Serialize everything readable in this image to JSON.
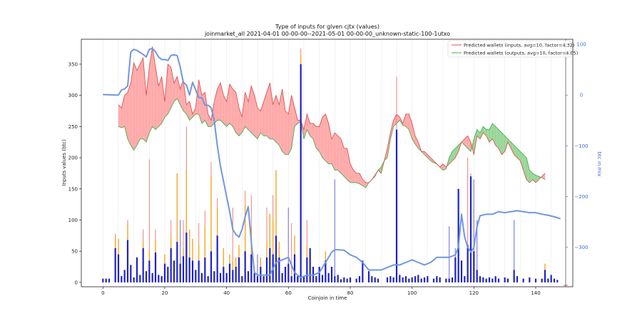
{
  "chart_data": {
    "type": "bar",
    "title_line1": "Type of inputs for given cjtx (values)",
    "title_line2": "joinmarket_all 2021-04-01 00-00-00--2021-05-01 00-00-00_unknown-static-100-1utxo",
    "xlabel": "Coinjoin in time",
    "ylabel": "Inputs values (btc)",
    "ylabel_right": "btc in mix",
    "xlim": [
      -7,
      152
    ],
    "ylim": [
      -7,
      390
    ],
    "ylim_right": [
      -378,
      110
    ],
    "x_ticks": [
      0,
      20,
      40,
      60,
      80,
      100,
      120,
      140
    ],
    "y_ticks": [
      0,
      50,
      100,
      150,
      200,
      250,
      300,
      350
    ],
    "y_ticks_right": [
      100,
      0,
      -100,
      -200,
      -300
    ],
    "y_tick_labels_right": [
      "100",
      "0",
      "−100",
      "−200",
      "−300"
    ],
    "legend": {
      "position": "top-right",
      "entries": [
        {
          "label": "Predicted wallets (inputs, avg=10, factor=4.32)",
          "color": "#e05252"
        },
        {
          "label": "Predicted wallets (outputs, avg=10, factor=4.05)",
          "color": "#4caf50"
        }
      ]
    },
    "colors": {
      "bars_main": "#1f22c8",
      "bars_light": "#8f90e8",
      "bars_orange": "#f5a623",
      "bars_red": "#e98080",
      "btc_line": "#6f97e0",
      "fill_red": "#ff9a9a",
      "fill_green": "#86cf86",
      "line_red": "#e05252",
      "line_green": "#4caf50",
      "grid": "#e6e6e6"
    },
    "bars": [
      {
        "x": 0,
        "v": 6
      },
      {
        "x": 1,
        "v": 6
      },
      {
        "x": 2,
        "v": 6
      },
      {
        "x": 4,
        "v": 55,
        "o": 75,
        "r": 78
      },
      {
        "x": 5,
        "v": 45,
        "o": 70
      },
      {
        "x": 6,
        "v": 10
      },
      {
        "x": 7,
        "v": 20
      },
      {
        "x": 8,
        "v": 68,
        "o": 95,
        "r": 100
      },
      {
        "x": 9,
        "v": 28
      },
      {
        "x": 10,
        "v": 8
      },
      {
        "x": 11,
        "v": 40
      },
      {
        "x": 12,
        "v": 12
      },
      {
        "x": 13,
        "v": 55,
        "o": 65,
        "r": 85
      },
      {
        "x": 14,
        "v": 18
      },
      {
        "x": 15,
        "v": 35,
        "o": 50,
        "r": 197
      },
      {
        "x": 16,
        "v": 15
      },
      {
        "x": 17,
        "v": 48,
        "o": 68,
        "r": 85
      },
      {
        "x": 18,
        "v": 12
      },
      {
        "x": 19,
        "v": 10
      },
      {
        "x": 20,
        "v": 30,
        "o": 45
      },
      {
        "x": 21,
        "v": 25
      },
      {
        "x": 22,
        "v": 55,
        "o": 75,
        "r": 100
      },
      {
        "x": 23,
        "v": 35
      },
      {
        "x": 24,
        "v": 65,
        "o": 175
      },
      {
        "x": 25,
        "v": 30,
        "o": 40,
        "l": 100
      },
      {
        "x": 26,
        "v": 42,
        "o": 55,
        "r": 100
      },
      {
        "x": 27,
        "v": 80,
        "o": 180,
        "r": 250
      },
      {
        "x": 28,
        "v": 40,
        "o": 85
      },
      {
        "x": 29,
        "v": 35,
        "o": 70
      },
      {
        "x": 30,
        "v": 20
      },
      {
        "x": 31,
        "v": 35,
        "o": 60,
        "r": 95
      },
      {
        "x": 32,
        "v": 15
      },
      {
        "x": 33,
        "v": 40,
        "o": 90,
        "r": 115
      },
      {
        "x": 34,
        "v": 10
      },
      {
        "x": 35,
        "v": 50,
        "o": 170,
        "r": 193
      },
      {
        "x": 36,
        "v": 18
      },
      {
        "x": 37,
        "v": 75,
        "o": 120,
        "r": 135
      },
      {
        "x": 38,
        "v": 15
      },
      {
        "x": 39,
        "v": 25,
        "o": 55
      },
      {
        "x": 40,
        "v": 15
      },
      {
        "x": 41,
        "v": 30,
        "o": 45
      },
      {
        "x": 42,
        "v": 20,
        "o": 35,
        "r": 120
      },
      {
        "x": 43,
        "v": 25,
        "o": 40
      },
      {
        "x": 44,
        "v": 40,
        "o": 60
      },
      {
        "x": 45,
        "v": 10
      },
      {
        "x": 46,
        "v": 50,
        "o": 125,
        "r": 147
      },
      {
        "x": 47,
        "v": 18
      },
      {
        "x": 48,
        "v": 45,
        "o": 90,
        "r": 140
      },
      {
        "x": 49,
        "v": 15
      },
      {
        "x": 50,
        "v": 10,
        "l": 45
      },
      {
        "x": 51,
        "v": 25,
        "o": 40
      },
      {
        "x": 52,
        "v": 10
      },
      {
        "x": 53,
        "v": 40,
        "o": 65,
        "r": 120
      },
      {
        "x": 54,
        "v": 55,
        "o": 110
      },
      {
        "x": 55,
        "v": 45,
        "o": 100,
        "r": 140
      },
      {
        "x": 56,
        "v": 75,
        "o": 180
      },
      {
        "x": 57,
        "v": 40,
        "o": 65
      },
      {
        "x": 58,
        "v": 15
      },
      {
        "x": 59,
        "v": 25
      },
      {
        "x": 60,
        "v": 30,
        "l": 120
      },
      {
        "x": 61,
        "v": 10,
        "o": 25,
        "r": 95
      },
      {
        "x": 62,
        "v": 45,
        "o": 75
      },
      {
        "x": 63,
        "v": 10
      },
      {
        "x": 64,
        "v": 350,
        "o": 365,
        "r": 375
      },
      {
        "x": 65,
        "v": 10
      },
      {
        "x": 66,
        "v": 40,
        "o": 60,
        "r": 100
      },
      {
        "x": 67,
        "v": 55
      },
      {
        "x": 68,
        "v": 25
      },
      {
        "x": 69,
        "v": 10
      },
      {
        "x": 70,
        "v": 25
      },
      {
        "x": 71,
        "v": 12
      },
      {
        "x": 72,
        "v": 35,
        "o": 50
      },
      {
        "x": 73,
        "v": 15
      },
      {
        "x": 74,
        "v": 25
      },
      {
        "x": 75,
        "v": 10,
        "l": 165
      },
      {
        "x": 76,
        "v": 12
      },
      {
        "x": 77,
        "v": 5
      },
      {
        "x": 78,
        "v": 8
      },
      {
        "x": 79,
        "v": 6
      },
      {
        "x": 80,
        "v": 8
      },
      {
        "x": 82,
        "v": 6
      },
      {
        "x": 83,
        "v": 10
      },
      {
        "x": 84,
        "v": 35
      },
      {
        "x": 86,
        "v": 18
      },
      {
        "x": 87,
        "v": 10
      },
      {
        "x": 88,
        "v": 8
      },
      {
        "x": 89,
        "v": 6
      },
      {
        "x": 92,
        "v": 8
      },
      {
        "x": 93,
        "v": 10
      },
      {
        "x": 94,
        "v": 8
      },
      {
        "x": 95,
        "v": 245,
        "r": 330
      },
      {
        "x": 96,
        "v": 12
      },
      {
        "x": 97,
        "v": 8
      },
      {
        "x": 98,
        "v": 10
      },
      {
        "x": 99,
        "v": 6
      },
      {
        "x": 100,
        "v": 8
      },
      {
        "x": 101,
        "v": 10
      },
      {
        "x": 102,
        "v": 12
      },
      {
        "x": 103,
        "v": 6
      },
      {
        "x": 104,
        "v": 8
      },
      {
        "x": 105,
        "v": 10
      },
      {
        "x": 107,
        "v": 6
      },
      {
        "x": 108,
        "v": 10
      },
      {
        "x": 109,
        "v": 8
      },
      {
        "x": 111,
        "v": 6
      },
      {
        "x": 112,
        "v": 6,
        "l": 90
      },
      {
        "x": 113,
        "v": 8
      },
      {
        "x": 114,
        "v": 40,
        "l": 55
      },
      {
        "x": 115,
        "v": 150
      },
      {
        "x": 116,
        "v": 35
      },
      {
        "x": 117,
        "v": 10
      },
      {
        "x": 118,
        "v": 60,
        "r": 200
      },
      {
        "x": 119,
        "v": 170,
        "r": 175
      },
      {
        "x": 120,
        "v": 50,
        "l": 165
      },
      {
        "x": 121,
        "v": 20,
        "l": 100
      },
      {
        "x": 122,
        "v": 10
      },
      {
        "x": 123,
        "v": 8
      },
      {
        "x": 124,
        "v": 6
      },
      {
        "x": 125,
        "v": 8
      },
      {
        "x": 126,
        "v": 6
      },
      {
        "x": 127,
        "v": 10
      },
      {
        "x": 128,
        "v": 6
      },
      {
        "x": 130,
        "v": 8
      },
      {
        "x": 131,
        "v": 6
      },
      {
        "x": 133,
        "v": 20,
        "l": 100
      },
      {
        "x": 134,
        "v": 10
      },
      {
        "x": 136,
        "v": 6
      },
      {
        "x": 138,
        "v": 8
      },
      {
        "x": 140,
        "v": 6
      },
      {
        "x": 142,
        "v": 6
      },
      {
        "x": 143,
        "v": 20,
        "o": 30
      },
      {
        "x": 144,
        "v": 6
      },
      {
        "x": 145,
        "v": 12
      },
      {
        "x": 146,
        "v": 6
      },
      {
        "x": 147,
        "v": 4
      }
    ],
    "btc_in_mix": {
      "x": [
        0,
        4,
        5,
        6,
        7,
        8,
        9,
        10,
        11,
        12,
        13,
        14,
        15,
        16,
        17,
        18,
        19,
        20,
        21,
        22,
        23,
        24,
        25,
        26,
        27,
        28,
        29,
        30,
        31,
        32,
        33,
        34,
        35,
        36,
        37,
        38,
        39,
        40,
        41,
        42,
        43,
        44,
        45,
        46,
        47,
        48,
        49,
        50,
        52,
        54,
        56,
        58,
        60,
        62,
        64,
        66,
        68,
        70,
        72,
        74,
        75,
        76,
        78,
        80,
        82,
        84,
        86,
        88,
        90,
        92,
        94,
        96,
        98,
        100,
        102,
        104,
        106,
        108,
        110,
        112,
        114,
        115,
        116,
        117,
        118,
        119,
        120,
        121,
        122,
        124,
        126,
        128,
        130,
        132,
        134,
        136,
        138,
        140,
        142,
        144,
        146,
        148
      ],
      "y": [
        1,
        0,
        0,
        10,
        12,
        18,
        85,
        90,
        88,
        84,
        80,
        75,
        90,
        92,
        85,
        75,
        70,
        70,
        68,
        78,
        79,
        78,
        55,
        25,
        20,
        0,
        25,
        10,
        -5,
        -5,
        -20,
        -20,
        -25,
        -50,
        -100,
        -140,
        -170,
        -200,
        -230,
        -265,
        -275,
        -280,
        -265,
        -240,
        -220,
        -290,
        -350,
        -355,
        -355,
        -355,
        -330,
        -325,
        -320,
        -350,
        -360,
        -355,
        -355,
        -350,
        -330,
        -310,
        -305,
        -305,
        -306,
        -315,
        -320,
        -330,
        -345,
        -345,
        -345,
        -340,
        -335,
        -335,
        -330,
        -325,
        -330,
        -335,
        -330,
        -320,
        -320,
        -320,
        -315,
        -300,
        -235,
        -280,
        -300,
        -310,
        -300,
        -260,
        -238,
        -235,
        -235,
        -230,
        -232,
        -230,
        -228,
        -230,
        -232,
        -232,
        -235,
        -237,
        -240,
        -244
      ],
      "max_annotation_y": 83
    },
    "wallets_inputs": {
      "x": [
        5,
        6,
        7,
        8,
        9,
        10,
        11,
        12,
        13,
        14,
        15,
        16,
        17,
        18,
        19,
        20,
        21,
        22,
        23,
        24,
        25,
        26,
        27,
        28,
        29,
        30,
        31,
        32,
        33,
        34,
        35,
        36,
        37,
        38,
        39,
        40,
        41,
        42,
        43,
        44,
        45,
        46,
        47,
        48,
        49,
        50,
        51,
        52,
        53,
        54,
        55,
        56,
        57,
        58,
        59,
        60,
        61,
        62,
        63,
        64,
        65,
        66,
        67,
        68,
        69,
        70,
        71,
        72,
        73,
        74,
        75,
        76,
        77,
        78,
        79,
        80,
        81,
        82,
        83,
        84,
        85,
        86,
        87,
        88,
        89,
        90,
        91,
        92,
        93,
        94,
        95,
        96,
        97,
        98,
        99,
        100,
        101,
        102,
        103,
        104,
        105,
        106,
        107,
        108,
        109,
        110,
        111,
        112,
        113,
        114,
        115,
        116,
        117,
        118,
        119,
        120,
        121,
        122,
        123,
        124,
        125,
        126,
        127,
        128,
        129,
        130,
        131,
        132,
        133,
        134,
        135,
        136,
        137,
        138,
        139,
        140,
        141,
        142,
        143
      ],
      "y": [
        285,
        280,
        300,
        305,
        320,
        352,
        340,
        350,
        360,
        300,
        345,
        378,
        345,
        315,
        330,
        290,
        350,
        345,
        320,
        330,
        310,
        325,
        285,
        290,
        270,
        280,
        325,
        300,
        305,
        270,
        260,
        290,
        310,
        320,
        300,
        290,
        318,
        310,
        305,
        280,
        265,
        305,
        290,
        315,
        300,
        280,
        275,
        290,
        305,
        320,
        285,
        300,
        285,
        310,
        275,
        270,
        300,
        280,
        260,
        260,
        245,
        270,
        255,
        255,
        250,
        250,
        265,
        270,
        255,
        230,
        240,
        235,
        230,
        215,
        215,
        190,
        180,
        175,
        175,
        165,
        160,
        160,
        165,
        172,
        180,
        175,
        195,
        215,
        240,
        260,
        270,
        265,
        255,
        270,
        270,
        255,
        235,
        225,
        210,
        210,
        205,
        200,
        195,
        190,
        185,
        190,
        185,
        190,
        195,
        200,
        210,
        225,
        230,
        235,
        225,
        205,
        235,
        230,
        240,
        235,
        225,
        230,
        220,
        215,
        205,
        210,
        225,
        215,
        205,
        200,
        195,
        180,
        165,
        160,
        165,
        160,
        165,
        170,
        175
      ]
    },
    "wallets_outputs": {
      "x": [
        5,
        6,
        7,
        8,
        9,
        10,
        11,
        12,
        13,
        14,
        15,
        16,
        17,
        18,
        19,
        20,
        21,
        22,
        23,
        24,
        25,
        26,
        27,
        28,
        29,
        30,
        31,
        32,
        33,
        34,
        35,
        36,
        37,
        38,
        39,
        40,
        41,
        42,
        43,
        44,
        45,
        46,
        47,
        48,
        49,
        50,
        51,
        52,
        53,
        54,
        55,
        56,
        57,
        58,
        59,
        60,
        61,
        62,
        63,
        64,
        65,
        66,
        67,
        68,
        69,
        70,
        71,
        72,
        73,
        74,
        75,
        76,
        77,
        78,
        79,
        80,
        81,
        82,
        83,
        84,
        85,
        86,
        87,
        88,
        89,
        90,
        91,
        92,
        93,
        94,
        95,
        96,
        97,
        98,
        99,
        100,
        101,
        102,
        103,
        104,
        105,
        106,
        107,
        108,
        109,
        110,
        111,
        112,
        113,
        114,
        115,
        116,
        117,
        118,
        119,
        120,
        121,
        122,
        123,
        124,
        125,
        126,
        127,
        128,
        129,
        130,
        131,
        132,
        133,
        134,
        135,
        136,
        137,
        138,
        139,
        140,
        141,
        142,
        143
      ],
      "y": [
        250,
        248,
        250,
        230,
        220,
        212,
        220,
        230,
        230,
        225,
        240,
        250,
        245,
        250,
        255,
        265,
        270,
        280,
        290,
        295,
        285,
        275,
        270,
        260,
        265,
        270,
        270,
        255,
        260,
        250,
        250,
        255,
        260,
        260,
        255,
        250,
        255,
        250,
        240,
        235,
        240,
        250,
        245,
        240,
        235,
        230,
        240,
        235,
        235,
        230,
        230,
        225,
        220,
        210,
        205,
        205,
        215,
        250,
        255,
        258,
        230,
        245,
        235,
        230,
        215,
        210,
        200,
        195,
        190,
        190,
        180,
        180,
        175,
        170,
        165,
        160,
        160,
        160,
        158,
        155,
        152,
        160,
        165,
        170,
        180,
        185,
        195,
        200,
        230,
        250,
        255,
        260,
        252,
        250,
        245,
        230,
        222,
        215,
        210,
        205,
        200,
        195,
        192,
        190,
        185,
        180,
        182,
        200,
        210,
        215,
        220,
        225,
        220,
        215,
        210,
        230,
        245,
        240,
        250,
        245,
        245,
        255,
        250,
        245,
        240,
        235,
        230,
        225,
        220,
        215,
        210,
        205,
        200,
        180,
        175,
        172,
        170,
        168,
        165
      ]
    }
  }
}
